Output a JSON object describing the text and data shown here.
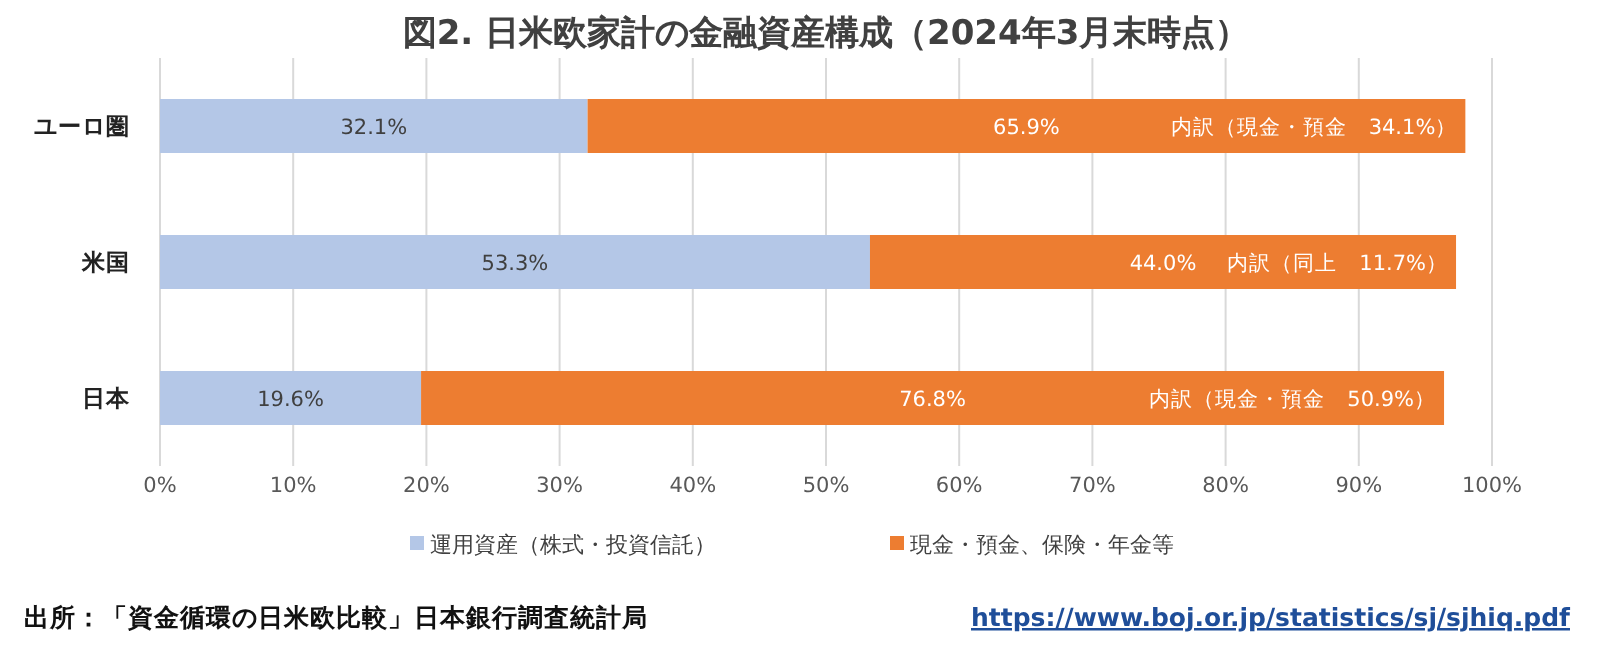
{
  "chart_data": {
    "type": "bar",
    "orientation": "horizontal",
    "stacked": true,
    "title": "図2. 日米欧家計の金融資産構成（2024年3月末時点）",
    "categories": [
      "ユーロ圏",
      "米国",
      "日本"
    ],
    "series": [
      {
        "name": "運用資産（株式・投資信託）",
        "color": "#b4c7e7",
        "values": [
          32.1,
          53.3,
          19.6
        ],
        "value_labels": [
          "32.1%",
          "53.3%",
          "19.6%"
        ]
      },
      {
        "name": "現金・預金、保険・年金等",
        "color": "#ed7d31",
        "values": [
          65.9,
          44.0,
          76.8
        ],
        "value_labels": [
          "65.9%",
          "44.0%",
          "76.8%"
        ]
      }
    ],
    "xlim": [
      0,
      100
    ],
    "xticks": [
      {
        "value": 0,
        "label": "0%"
      },
      {
        "value": 10,
        "label": "10%"
      },
      {
        "value": 20,
        "label": "20%"
      },
      {
        "value": 30,
        "label": "30%"
      },
      {
        "value": 40,
        "label": "40%"
      },
      {
        "value": 50,
        "label": "50%"
      },
      {
        "value": 60,
        "label": "60%"
      },
      {
        "value": 70,
        "label": "70%"
      },
      {
        "value": 80,
        "label": "80%"
      },
      {
        "value": 90,
        "label": "90%"
      },
      {
        "value": 100,
        "label": "100%"
      }
    ],
    "grid": "x",
    "legend": "bottom",
    "annotations": [
      "内訳（現金・預金　34.1%）",
      "内訳（同上　11.7%）",
      "内訳（現金・預金　50.9%）",
      "出所：「資金循環の日米欧比較」日本銀行調査統計局",
      "https://www.boj.or.jp/statistics/sj/sjhiq.pdf"
    ]
  }
}
